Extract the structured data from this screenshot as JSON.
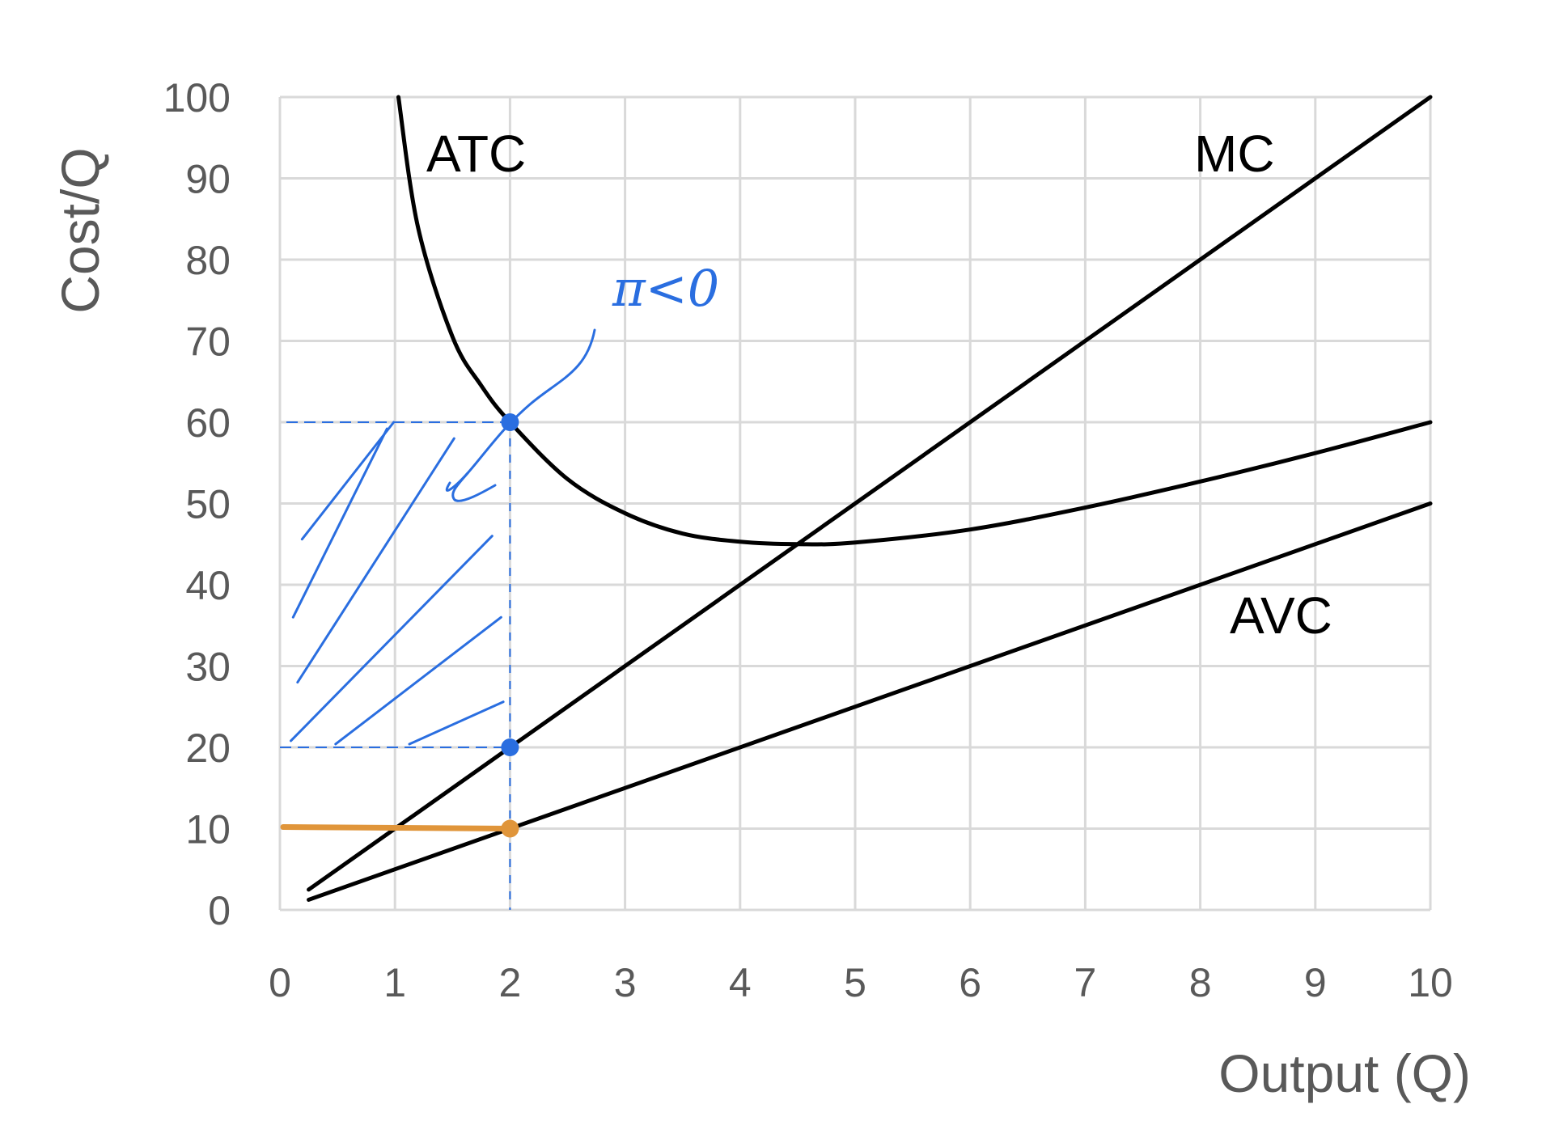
{
  "chart_data": {
    "type": "line",
    "xlabel": "Output (Q)",
    "ylabel": "Cost/Q",
    "xlim": [
      0,
      10
    ],
    "ylim": [
      0,
      100
    ],
    "x_ticks": [
      "0",
      "1",
      "2",
      "3",
      "4",
      "5",
      "6",
      "7",
      "8",
      "9",
      "10"
    ],
    "y_ticks": [
      "0",
      "10",
      "20",
      "30",
      "40",
      "50",
      "60",
      "70",
      "80",
      "90",
      "100"
    ],
    "grid": true,
    "series": [
      {
        "name": "ATC",
        "x": [
          1.03,
          1.2,
          1.5,
          1.75,
          2.0,
          2.5,
          3.0,
          3.5,
          4.0,
          4.5,
          5.0,
          6.0,
          7.0,
          8.0,
          9.0,
          10.0
        ],
        "y": [
          100,
          84,
          70.5,
          64.5,
          60,
          53,
          48.8,
          46.3,
          45.3,
          45,
          45.2,
          46.8,
          49.5,
          52.7,
          56.2,
          60
        ]
      },
      {
        "name": "MC",
        "x": [
          0.25,
          10.0
        ],
        "y": [
          2.5,
          100
        ]
      },
      {
        "name": "AVC",
        "x": [
          0.25,
          10.0
        ],
        "y": [
          1.25,
          50
        ]
      }
    ],
    "annotations": {
      "note_text": "π<0",
      "points": [
        {
          "x": 2,
          "y": 60,
          "color": "#2a6ee0"
        },
        {
          "x": 2,
          "y": 20,
          "color": "#2a6ee0"
        },
        {
          "x": 2,
          "y": 10,
          "color": "#e0953a"
        }
      ],
      "shaded_region": {
        "x": [
          0,
          2
        ],
        "y": [
          20,
          60
        ],
        "color": "#2a6ee0"
      },
      "orange_line": {
        "x": [
          0,
          2
        ],
        "y": 10,
        "color": "#e0953a"
      }
    },
    "colors": {
      "curves": "#000000",
      "grid": "#d9d9d9",
      "annotation_blue": "#2a6ee0",
      "annotation_orange": "#e0953a"
    }
  }
}
